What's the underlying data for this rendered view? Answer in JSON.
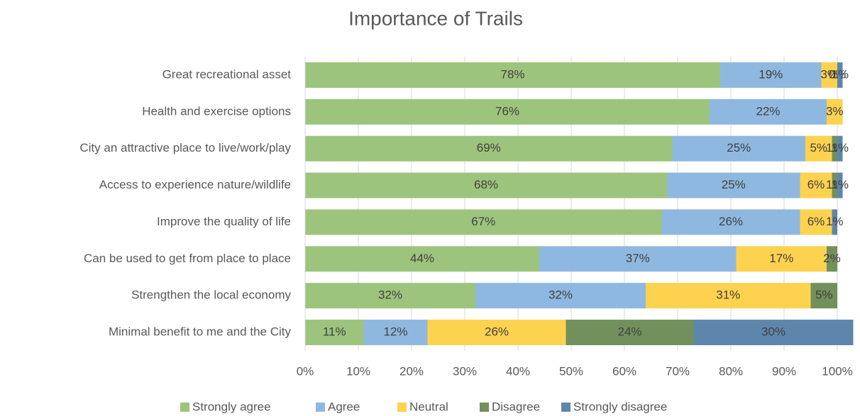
{
  "chart_data": {
    "type": "stacked_bar_horizontal",
    "title": "Importance of Trails",
    "categories": [
      "Great recreational asset",
      "Health and exercise options",
      "City an attractive place to live/work/play",
      "Access to experience nature/wildlife",
      "Improve the quality of life",
      "Can be used to get from place to place",
      "Strengthen the local economy",
      "Minimal benefit to me and the City"
    ],
    "series": [
      {
        "name": "Strongly agree",
        "color": "#9dc47c",
        "values": [
          78,
          76,
          69,
          68,
          67,
          44,
          32,
          11
        ],
        "value_labels": [
          "78%",
          "76%",
          "69%",
          "68%",
          "67%",
          "44%",
          "32%",
          "11%"
        ]
      },
      {
        "name": "Agree",
        "color": "#8fb8e0",
        "values": [
          19,
          22,
          25,
          25,
          26,
          37,
          32,
          12
        ],
        "value_labels": [
          "19%",
          "22%",
          "25%",
          "25%",
          "26%",
          "37%",
          "32%",
          "12%"
        ]
      },
      {
        "name": "Neutral",
        "color": "#fdd24f",
        "values": [
          3,
          3,
          5,
          6,
          6,
          17,
          31,
          26
        ],
        "value_labels": [
          "3%",
          "3%",
          "5%",
          "6%",
          "6%",
          "17%",
          "31%",
          "26%"
        ]
      },
      {
        "name": "Disagree",
        "color": "#71905c",
        "values": [
          0,
          null,
          1,
          1,
          null,
          2,
          5,
          24
        ],
        "value_labels": [
          "0%",
          null,
          "1%",
          "1%",
          null,
          "2%",
          "5%",
          "24%"
        ]
      },
      {
        "name": "Strongly disagree",
        "color": "#5e86ad",
        "values": [
          1,
          null,
          1,
          1,
          1,
          null,
          null,
          30
        ],
        "value_labels": [
          "1%",
          null,
          "1%",
          "1%",
          "1%",
          null,
          null,
          "30%"
        ]
      }
    ],
    "xlim": [
      0,
      100
    ],
    "xticks": [
      {
        "value": 0,
        "label": "0%"
      },
      {
        "value": 10,
        "label": "10%"
      },
      {
        "value": 20,
        "label": "20%"
      },
      {
        "value": 30,
        "label": "30%"
      },
      {
        "value": 40,
        "label": "40%"
      },
      {
        "value": 50,
        "label": "50%"
      },
      {
        "value": 60,
        "label": "60%"
      },
      {
        "value": 70,
        "label": "70%"
      },
      {
        "value": 80,
        "label": "80%"
      },
      {
        "value": 90,
        "label": "90%"
      },
      {
        "value": 100,
        "label": "100%"
      }
    ],
    "grid": true,
    "legend": "bottom"
  }
}
